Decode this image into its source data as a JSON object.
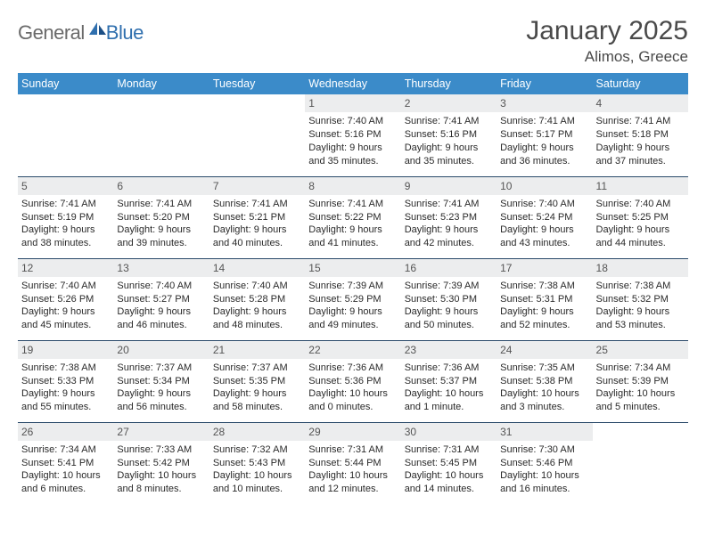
{
  "logo": {
    "text1": "General",
    "text2": "Blue"
  },
  "title": "January 2025",
  "subtitle": "Alimos, Greece",
  "colors": {
    "header_bg": "#3b8bc9",
    "header_text": "#ffffff",
    "daynum_bg": "#ecedee",
    "row_border": "#2a4a6a",
    "body_text": "#2a2a2a",
    "title_text": "#4a4a4a",
    "logo_gray": "#6a6a6a",
    "logo_blue": "#2f6fae"
  },
  "weekdays": [
    "Sunday",
    "Monday",
    "Tuesday",
    "Wednesday",
    "Thursday",
    "Friday",
    "Saturday"
  ],
  "weeks": [
    [
      null,
      null,
      null,
      {
        "n": "1",
        "sr": "Sunrise: 7:40 AM",
        "ss": "Sunset: 5:16 PM",
        "d1": "Daylight: 9 hours",
        "d2": "and 35 minutes."
      },
      {
        "n": "2",
        "sr": "Sunrise: 7:41 AM",
        "ss": "Sunset: 5:16 PM",
        "d1": "Daylight: 9 hours",
        "d2": "and 35 minutes."
      },
      {
        "n": "3",
        "sr": "Sunrise: 7:41 AM",
        "ss": "Sunset: 5:17 PM",
        "d1": "Daylight: 9 hours",
        "d2": "and 36 minutes."
      },
      {
        "n": "4",
        "sr": "Sunrise: 7:41 AM",
        "ss": "Sunset: 5:18 PM",
        "d1": "Daylight: 9 hours",
        "d2": "and 37 minutes."
      }
    ],
    [
      {
        "n": "5",
        "sr": "Sunrise: 7:41 AM",
        "ss": "Sunset: 5:19 PM",
        "d1": "Daylight: 9 hours",
        "d2": "and 38 minutes."
      },
      {
        "n": "6",
        "sr": "Sunrise: 7:41 AM",
        "ss": "Sunset: 5:20 PM",
        "d1": "Daylight: 9 hours",
        "d2": "and 39 minutes."
      },
      {
        "n": "7",
        "sr": "Sunrise: 7:41 AM",
        "ss": "Sunset: 5:21 PM",
        "d1": "Daylight: 9 hours",
        "d2": "and 40 minutes."
      },
      {
        "n": "8",
        "sr": "Sunrise: 7:41 AM",
        "ss": "Sunset: 5:22 PM",
        "d1": "Daylight: 9 hours",
        "d2": "and 41 minutes."
      },
      {
        "n": "9",
        "sr": "Sunrise: 7:41 AM",
        "ss": "Sunset: 5:23 PM",
        "d1": "Daylight: 9 hours",
        "d2": "and 42 minutes."
      },
      {
        "n": "10",
        "sr": "Sunrise: 7:40 AM",
        "ss": "Sunset: 5:24 PM",
        "d1": "Daylight: 9 hours",
        "d2": "and 43 minutes."
      },
      {
        "n": "11",
        "sr": "Sunrise: 7:40 AM",
        "ss": "Sunset: 5:25 PM",
        "d1": "Daylight: 9 hours",
        "d2": "and 44 minutes."
      }
    ],
    [
      {
        "n": "12",
        "sr": "Sunrise: 7:40 AM",
        "ss": "Sunset: 5:26 PM",
        "d1": "Daylight: 9 hours",
        "d2": "and 45 minutes."
      },
      {
        "n": "13",
        "sr": "Sunrise: 7:40 AM",
        "ss": "Sunset: 5:27 PM",
        "d1": "Daylight: 9 hours",
        "d2": "and 46 minutes."
      },
      {
        "n": "14",
        "sr": "Sunrise: 7:40 AM",
        "ss": "Sunset: 5:28 PM",
        "d1": "Daylight: 9 hours",
        "d2": "and 48 minutes."
      },
      {
        "n": "15",
        "sr": "Sunrise: 7:39 AM",
        "ss": "Sunset: 5:29 PM",
        "d1": "Daylight: 9 hours",
        "d2": "and 49 minutes."
      },
      {
        "n": "16",
        "sr": "Sunrise: 7:39 AM",
        "ss": "Sunset: 5:30 PM",
        "d1": "Daylight: 9 hours",
        "d2": "and 50 minutes."
      },
      {
        "n": "17",
        "sr": "Sunrise: 7:38 AM",
        "ss": "Sunset: 5:31 PM",
        "d1": "Daylight: 9 hours",
        "d2": "and 52 minutes."
      },
      {
        "n": "18",
        "sr": "Sunrise: 7:38 AM",
        "ss": "Sunset: 5:32 PM",
        "d1": "Daylight: 9 hours",
        "d2": "and 53 minutes."
      }
    ],
    [
      {
        "n": "19",
        "sr": "Sunrise: 7:38 AM",
        "ss": "Sunset: 5:33 PM",
        "d1": "Daylight: 9 hours",
        "d2": "and 55 minutes."
      },
      {
        "n": "20",
        "sr": "Sunrise: 7:37 AM",
        "ss": "Sunset: 5:34 PM",
        "d1": "Daylight: 9 hours",
        "d2": "and 56 minutes."
      },
      {
        "n": "21",
        "sr": "Sunrise: 7:37 AM",
        "ss": "Sunset: 5:35 PM",
        "d1": "Daylight: 9 hours",
        "d2": "and 58 minutes."
      },
      {
        "n": "22",
        "sr": "Sunrise: 7:36 AM",
        "ss": "Sunset: 5:36 PM",
        "d1": "Daylight: 10 hours",
        "d2": "and 0 minutes."
      },
      {
        "n": "23",
        "sr": "Sunrise: 7:36 AM",
        "ss": "Sunset: 5:37 PM",
        "d1": "Daylight: 10 hours",
        "d2": "and 1 minute."
      },
      {
        "n": "24",
        "sr": "Sunrise: 7:35 AM",
        "ss": "Sunset: 5:38 PM",
        "d1": "Daylight: 10 hours",
        "d2": "and 3 minutes."
      },
      {
        "n": "25",
        "sr": "Sunrise: 7:34 AM",
        "ss": "Sunset: 5:39 PM",
        "d1": "Daylight: 10 hours",
        "d2": "and 5 minutes."
      }
    ],
    [
      {
        "n": "26",
        "sr": "Sunrise: 7:34 AM",
        "ss": "Sunset: 5:41 PM",
        "d1": "Daylight: 10 hours",
        "d2": "and 6 minutes."
      },
      {
        "n": "27",
        "sr": "Sunrise: 7:33 AM",
        "ss": "Sunset: 5:42 PM",
        "d1": "Daylight: 10 hours",
        "d2": "and 8 minutes."
      },
      {
        "n": "28",
        "sr": "Sunrise: 7:32 AM",
        "ss": "Sunset: 5:43 PM",
        "d1": "Daylight: 10 hours",
        "d2": "and 10 minutes."
      },
      {
        "n": "29",
        "sr": "Sunrise: 7:31 AM",
        "ss": "Sunset: 5:44 PM",
        "d1": "Daylight: 10 hours",
        "d2": "and 12 minutes."
      },
      {
        "n": "30",
        "sr": "Sunrise: 7:31 AM",
        "ss": "Sunset: 5:45 PM",
        "d1": "Daylight: 10 hours",
        "d2": "and 14 minutes."
      },
      {
        "n": "31",
        "sr": "Sunrise: 7:30 AM",
        "ss": "Sunset: 5:46 PM",
        "d1": "Daylight: 10 hours",
        "d2": "and 16 minutes."
      },
      null
    ]
  ]
}
